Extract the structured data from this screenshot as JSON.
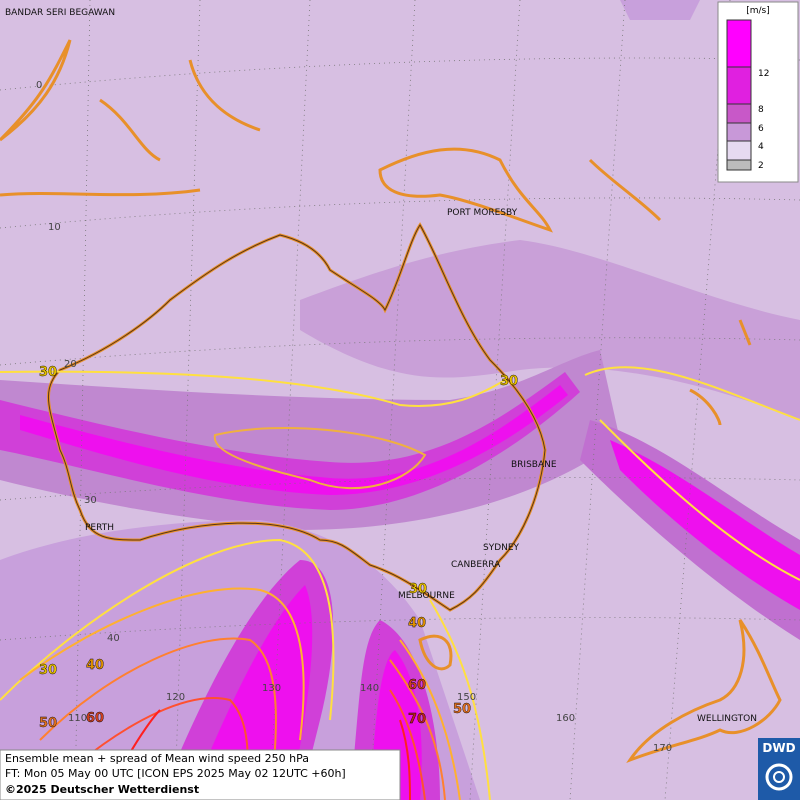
{
  "map": {
    "cities": [
      "BANDAR SERI BEGAWAN",
      "PORT MORESBY",
      "BRISBANE",
      "PERTH",
      "SYDNEY",
      "CANBERRA",
      "MELBOURNE",
      "WELLINGTON"
    ],
    "lat_labels": [
      0,
      10,
      20,
      30,
      40
    ],
    "lon_labels": [
      110,
      120,
      130,
      140,
      150,
      160,
      170
    ],
    "contour_labels": [
      30,
      30,
      30,
      40,
      30,
      40,
      50,
      60,
      60,
      50,
      70
    ]
  },
  "legend": {
    "unit": "[m/s]",
    "levels": [
      12,
      8,
      6,
      4,
      2
    ]
  },
  "caption": {
    "line1": "Ensemble mean + spread of Mean wind speed 250 hPa",
    "line2": "FT: Mon 05 May 00 UTC [ICON EPS 2025 May 02 12UTC +60h]",
    "line3": "©2025 Deutscher Wetterdienst"
  },
  "logo": "DWD"
}
